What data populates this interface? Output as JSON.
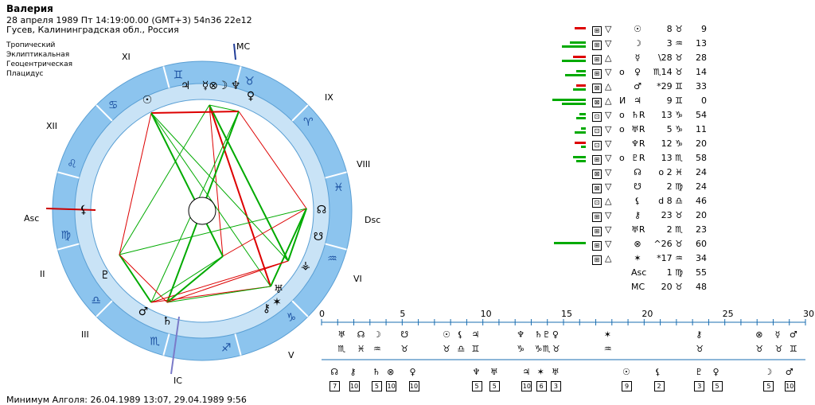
{
  "header": {
    "name": "Валерия",
    "line1": "28 апреля 1989  Пт  14:19:00.00 (GMT+3) 54n36  22e12",
    "line2": "Гусев, Калининградская обл., Россия"
  },
  "system": [
    "Тропический",
    "Эклиптикальная",
    "Геоцентрическая",
    "Плацидус"
  ],
  "chart_labels": {
    "mc": "MC",
    "ic": "IC",
    "asc": "Asc",
    "dsc": "Dsc",
    "houses": [
      "XI",
      "IX",
      "XII",
      "VIII",
      "II",
      "VI",
      "III",
      "V"
    ]
  },
  "zodiac_ring": [
    "♊",
    "♉",
    "♈",
    "♓",
    "♒",
    "♑",
    "♐",
    "♏",
    "♎",
    "♍",
    "♌",
    "♋"
  ],
  "planets_on_chart": [
    "♃",
    "☿",
    "⊗",
    "☽",
    "♆",
    "♀",
    "☉",
    "♂",
    "♅",
    "♄",
    "♇",
    "⚸",
    "☊",
    "☋",
    "⚶",
    "⚷",
    "✶"
  ],
  "table": [
    {
      "box": "⊞",
      "asp": "▽",
      "flag": "",
      "glyph": "☉",
      "val": "8 ♉",
      "min": "9",
      "bars": [
        {
          "c": "#d00",
          "w": 14
        },
        {
          "c": "#d00",
          "w": 0
        }
      ]
    },
    {
      "box": "⊞",
      "asp": "▽",
      "flag": "",
      "glyph": "☽",
      "val": "3 ♒",
      "min": "13",
      "bars": [
        {
          "c": "#0a0",
          "w": 20
        },
        {
          "c": "#0a0",
          "w": 30
        }
      ]
    },
    {
      "box": "⊞",
      "asp": "△",
      "flag": "",
      "glyph": "☿",
      "val": "\\28 ♉",
      "min": "28",
      "bars": [
        {
          "c": "#d00",
          "w": 16
        },
        {
          "c": "#0a0",
          "w": 30
        }
      ]
    },
    {
      "box": "⊞",
      "asp": "▽",
      "flag": "о",
      "glyph": "♀",
      "val": "♏14 ♉",
      "min": "14",
      "bars": [
        {
          "c": "#0a0",
          "w": 12
        },
        {
          "c": "#0a0",
          "w": 26
        }
      ]
    },
    {
      "box": "⊠",
      "asp": "△",
      "flag": "",
      "glyph": "♂",
      "val": "*29 ♊",
      "min": "33",
      "bars": [
        {
          "c": "#d00",
          "w": 12
        },
        {
          "c": "#0a0",
          "w": 16
        }
      ]
    },
    {
      "box": "⊠",
      "asp": "△",
      "flag": "И",
      "glyph": "♃",
      "val": "9 ♊",
      "min": "0",
      "bars": [
        {
          "c": "#0a0",
          "w": 42
        },
        {
          "c": "#0a0",
          "w": 30
        }
      ]
    },
    {
      "box": "⊡",
      "asp": "▽",
      "flag": "о",
      "glyph": "♄R",
      "val": "13 ♑",
      "min": "54",
      "bars": [
        {
          "c": "#0a0",
          "w": 8
        },
        {
          "c": "#0a0",
          "w": 12
        }
      ]
    },
    {
      "box": "⊡",
      "asp": "▽",
      "flag": "о",
      "glyph": "♅R",
      "val": "5 ♑",
      "min": "11",
      "bars": [
        {
          "c": "#0a0",
          "w": 6
        },
        {
          "c": "#0a0",
          "w": 14
        }
      ]
    },
    {
      "box": "⊡",
      "asp": "▽",
      "flag": "",
      "glyph": "♆R",
      "val": "12 ♑",
      "min": "20",
      "bars": [
        {
          "c": "#d00",
          "w": 14
        },
        {
          "c": "#0a0",
          "w": 6
        }
      ]
    },
    {
      "box": "⊞",
      "asp": "▽",
      "flag": "о",
      "glyph": "♇R",
      "val": "13 ♏",
      "min": "58",
      "bars": [
        {
          "c": "#0a0",
          "w": 16
        },
        {
          "c": "#0a0",
          "w": 12
        }
      ]
    },
    {
      "box": "⊠",
      "asp": "▽",
      "flag": "",
      "glyph": "☊",
      "val": "о 2 ♓",
      "min": "24",
      "bars": []
    },
    {
      "box": "⊠",
      "asp": "▽",
      "flag": "",
      "glyph": "☋",
      "val": "2 ♍",
      "min": "24",
      "bars": []
    },
    {
      "box": "⊡",
      "asp": "△",
      "flag": "",
      "glyph": "⚸",
      "val": "d 8 ♎",
      "min": "46",
      "bars": []
    },
    {
      "box": "⊞",
      "asp": "▽",
      "flag": "",
      "glyph": "⚷",
      "val": "23 ♉",
      "min": "20",
      "bars": []
    },
    {
      "box": "⊞",
      "asp": "▽",
      "flag": "",
      "glyph": "♅R",
      "val": "2 ♏",
      "min": "23",
      "bars": []
    },
    {
      "box": "⊞",
      "asp": "▽",
      "flag": "",
      "glyph": "⊗",
      "val": "^26 ♉",
      "min": "60",
      "bars": [
        {
          "c": "#0a0",
          "w": 40
        }
      ]
    },
    {
      "box": "⊞",
      "asp": "△",
      "flag": "",
      "glyph": "✶",
      "val": "*17 ♒",
      "min": "34",
      "bars": []
    },
    {
      "box": "",
      "asp": "",
      "flag": "",
      "glyph": "Asc",
      "val": "1 ♍",
      "min": "55",
      "bars": []
    },
    {
      "box": "",
      "asp": "",
      "flag": "",
      "glyph": "MC",
      "val": "20 ♉",
      "min": "48",
      "bars": []
    }
  ],
  "timeline": {
    "ticks": [
      "0",
      "5",
      "10",
      "15",
      "20",
      "25",
      "30"
    ],
    "top1": [
      "♅",
      "☊",
      "☽",
      "☋",
      "☉",
      "⚸",
      "♃",
      "♆",
      "♄",
      "♇",
      "♀",
      "✶",
      "⚷",
      "⊗",
      "☿",
      "♂"
    ],
    "top2": [
      "♏",
      "♓",
      "♒",
      "♉",
      "♉",
      "♎",
      "♊",
      "♑",
      "♑",
      "♏",
      "♉",
      "♒",
      "♉",
      "♉",
      "♉",
      "♊"
    ],
    "bot_glyphs": [
      "☊",
      "⚷",
      "♄",
      "⊗",
      "♀",
      "♆",
      "♅",
      "♃",
      "✶",
      "♅",
      "☉",
      "⚸",
      "♇",
      "♀",
      "☽",
      "♂"
    ],
    "bot_nums": [
      "7",
      "10",
      "5",
      "10",
      "10",
      "5",
      "5",
      "10",
      "6",
      "3",
      "9",
      "2",
      "3",
      "5",
      "5",
      "10"
    ]
  },
  "footer": "Минимум Алголя: 26.04.1989 13:07,  29.04.1989  9:56"
}
